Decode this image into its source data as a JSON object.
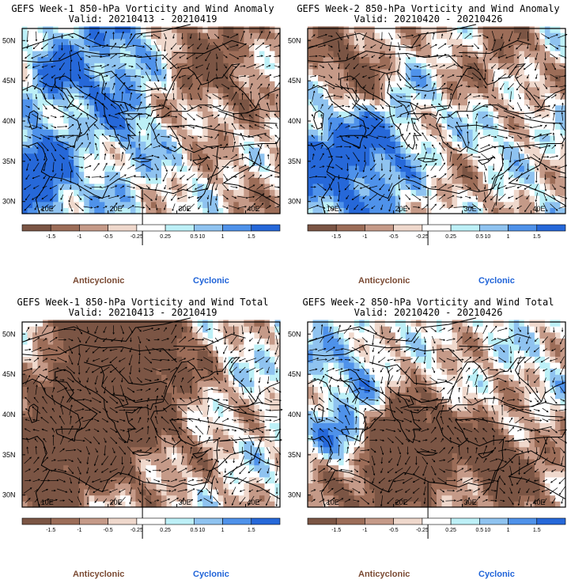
{
  "colors": {
    "anticyclonic_text": "#7a4a33",
    "cyclonic_text": "#1f63d8",
    "brown_dark": "#7b5544",
    "brown_mid": "#9c6d58",
    "brown_light": "#c59a88",
    "brown_pale": "#efd8cc",
    "white": "#ffffff",
    "cyan_pale": "#bdf0f7",
    "blue_light": "#8fc3f0",
    "blue_mid": "#4f92ea",
    "blue_dark": "#2668d9"
  },
  "colorbar": {
    "labels": [
      "-1.5",
      "-1",
      "-0.5",
      "-0.25",
      "0.25",
      "0.5",
      "1",
      "1.5"
    ],
    "scale_note": "10"
  },
  "panels": [
    {
      "title_line1": "GEFS Week-1 850-hPa Vorticity and Wind Anomaly",
      "title_line2": "Valid: 20210413 - 20210419",
      "x_ticks": [
        "10E",
        "20E",
        "30E",
        "40E"
      ],
      "y_ticks": [
        "50N",
        "45N",
        "40N",
        "35N",
        "30N"
      ],
      "legend_left": "Anticyclonic",
      "legend_right": "Cyclonic",
      "seed": 11
    },
    {
      "title_line1": "GEFS Week-2 850-hPa Vorticity and Wind Anomaly",
      "title_line2": "Valid: 20210420 - 20210426",
      "x_ticks": [
        "10E",
        "20E",
        "30E",
        "40E"
      ],
      "y_ticks": [
        "50N",
        "45N",
        "40N",
        "35N",
        "30N"
      ],
      "legend_left": "Anticyclonic",
      "legend_right": "Cyclonic",
      "seed": 23
    },
    {
      "title_line1": "GEFS Week-1 850-hPa Vorticity and Wind Total",
      "title_line2": "Valid: 20210413 - 20210419",
      "x_ticks": [
        "10E",
        "20E",
        "30E",
        "40E"
      ],
      "y_ticks": [
        "50N",
        "45N",
        "40N",
        "35N",
        "30N"
      ],
      "legend_left": "Anticyclonic",
      "legend_right": "Cyclonic",
      "seed": 37
    },
    {
      "title_line1": "GEFS Week-2 850-hPa Vorticity and Wind Total",
      "title_line2": "Valid: 20210420 - 20210426",
      "x_ticks": [
        "10E",
        "20E",
        "30E",
        "40E"
      ],
      "y_ticks": [
        "50N",
        "45N",
        "40N",
        "35N",
        "30N"
      ],
      "legend_left": "Anticyclonic",
      "legend_right": "Cyclonic",
      "seed": 53
    }
  ]
}
